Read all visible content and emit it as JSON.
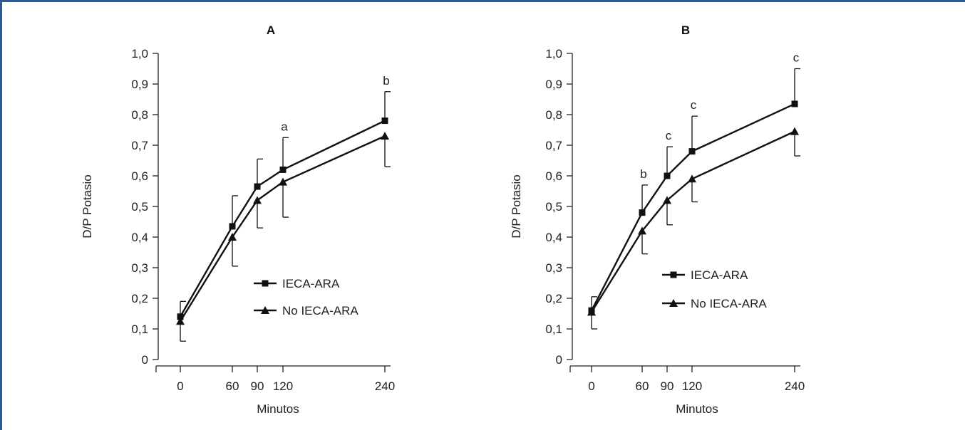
{
  "colors": {
    "frame": "#2b5c95",
    "series": "#111111"
  },
  "chart_data": [
    {
      "type": "line",
      "title": "A",
      "xlabel": "Minutos",
      "ylabel": "D/P Potasio",
      "ylim": [
        0,
        1.0
      ],
      "yticks": [
        "0",
        "0,1",
        "0,2",
        "0,3",
        "0,4",
        "0,5",
        "0,6",
        "0,7",
        "0,8",
        "0,9",
        "1,0"
      ],
      "x": [
        0,
        60,
        90,
        120,
        240
      ],
      "xticks": [
        "0",
        "60",
        "90",
        "120",
        "240"
      ],
      "legend_position": "center-right",
      "series": [
        {
          "name": "IECA-ARA",
          "marker": "square",
          "values": [
            0.14,
            0.435,
            0.565,
            0.62,
            0.78
          ],
          "error_upper": [
            0.19,
            0.535,
            0.655,
            0.725,
            0.875
          ],
          "annotations": [
            "",
            "",
            "",
            "a",
            "b"
          ]
        },
        {
          "name": "No IECA-ARA",
          "marker": "triangle",
          "values": [
            0.125,
            0.4,
            0.52,
            0.58,
            0.73
          ],
          "error_lower": [
            0.06,
            0.305,
            0.43,
            0.465,
            0.63
          ]
        }
      ]
    },
    {
      "type": "line",
      "title": "B",
      "xlabel": "Minutos",
      "ylabel": "D/P Potasio",
      "ylim": [
        0,
        1.0
      ],
      "yticks": [
        "0",
        "0,1",
        "0,2",
        "0,3",
        "0,4",
        "0,5",
        "0,6",
        "0,7",
        "0,8",
        "0,9",
        "1,0"
      ],
      "x": [
        0,
        60,
        90,
        120,
        240
      ],
      "xticks": [
        "0",
        "60",
        "90",
        "120",
        "240"
      ],
      "legend_position": "center-right",
      "series": [
        {
          "name": "IECA-ARA",
          "marker": "square",
          "values": [
            0.16,
            0.48,
            0.6,
            0.68,
            0.835
          ],
          "error_upper": [
            0.205,
            0.57,
            0.695,
            0.795,
            0.95
          ],
          "annotations": [
            "",
            "b",
            "c",
            "c",
            "c"
          ]
        },
        {
          "name": "No IECA-ARA",
          "marker": "triangle",
          "values": [
            0.155,
            0.42,
            0.52,
            0.59,
            0.745
          ],
          "error_lower": [
            0.1,
            0.345,
            0.44,
            0.515,
            0.665
          ]
        }
      ]
    }
  ]
}
